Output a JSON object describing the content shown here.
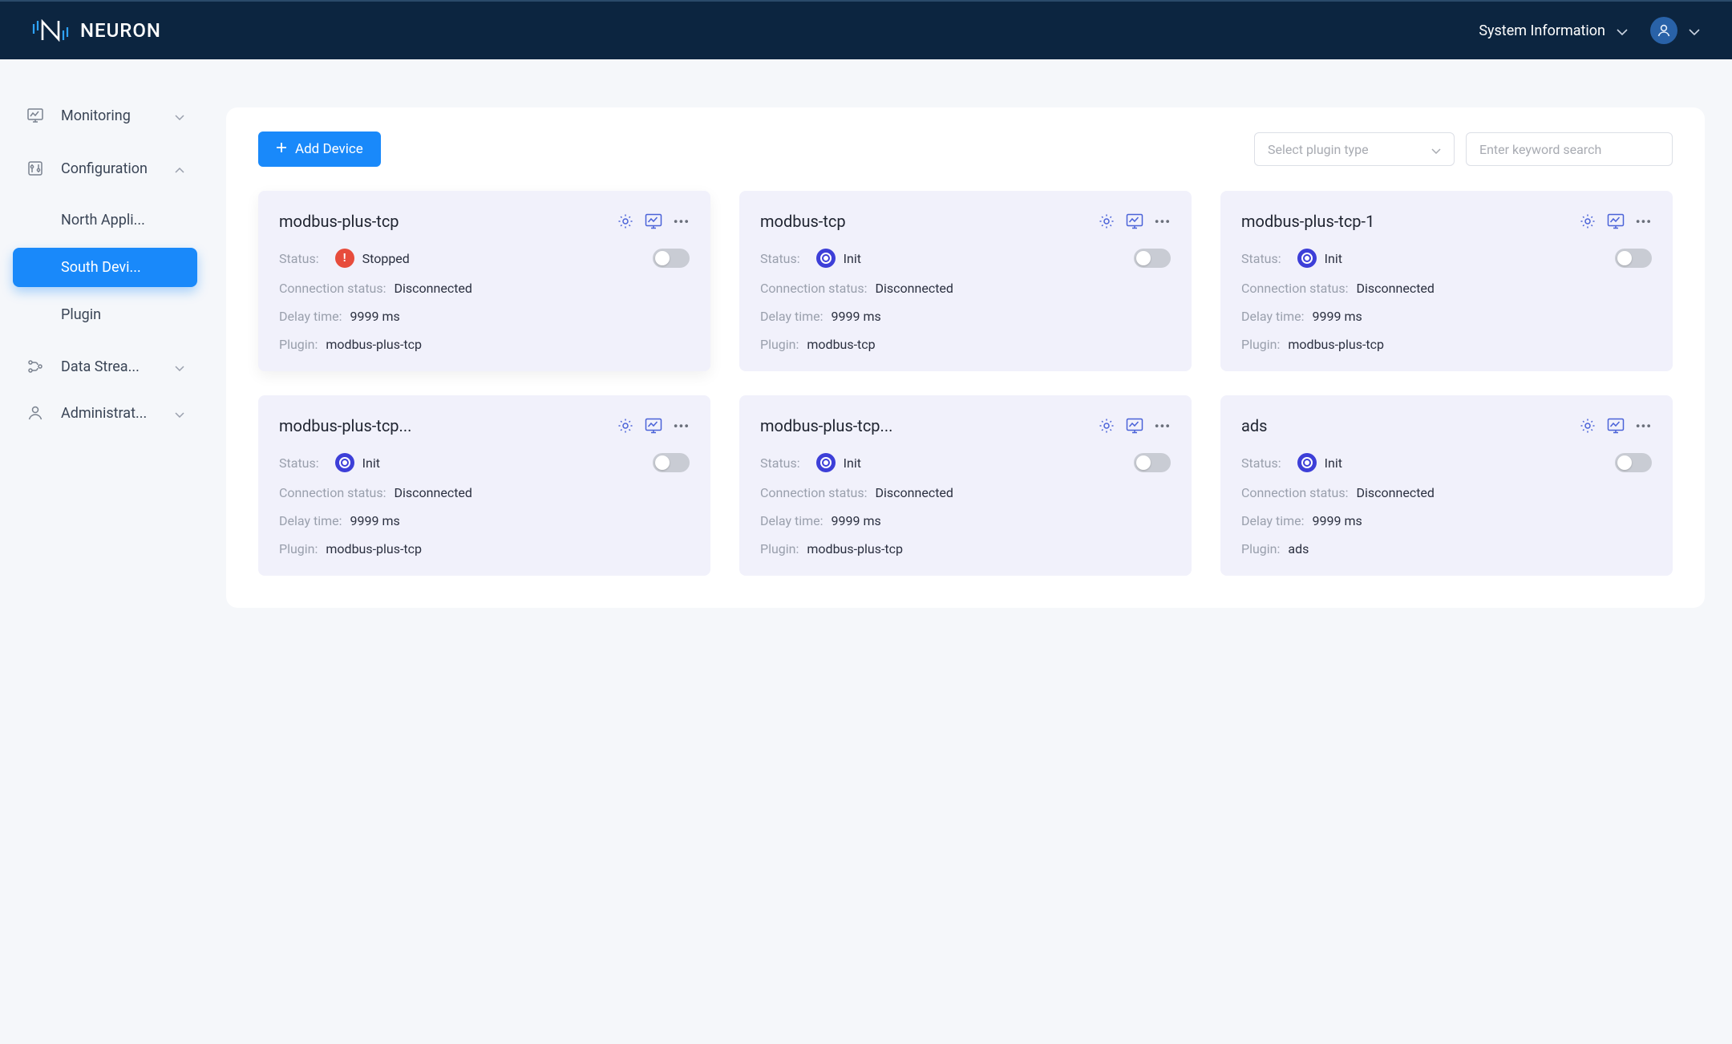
{
  "colors": {
    "header_bg": "#0c2540",
    "accent": "#1989fa",
    "card_bg": "#f1f1fb",
    "page_bg": "#f5f7fa",
    "label_muted": "#9aa0ad",
    "text_dark": "#2b3040",
    "border": "#dcdfe6",
    "init_dot": "#3d3fd8",
    "stopped_dot": "#e74c3c",
    "switch_off": "#c9ccd4"
  },
  "header": {
    "brand": "NEURON",
    "system_info": "System Information"
  },
  "sidebar": {
    "monitoring": "Monitoring",
    "configuration": "Configuration",
    "north": "North Appli...",
    "south": "South Devi...",
    "plugin": "Plugin",
    "data": "Data Strea...",
    "admin": "Administrat..."
  },
  "toolbar": {
    "add_device": "Add Device",
    "plugin_placeholder": "Select plugin type",
    "search_placeholder": "Enter keyword search"
  },
  "labels": {
    "status": "Status:",
    "connection": "Connection status:",
    "delay": "Delay time:",
    "plugin": "Plugin:"
  },
  "cards": [
    {
      "title": "modbus-plus-tcp",
      "status_text": "Stopped",
      "status_kind": "stopped",
      "connection": "Disconnected",
      "delay": "9999 ms",
      "plugin": "modbus-plus-tcp",
      "toggle_on": false,
      "elevated": true
    },
    {
      "title": "modbus-tcp",
      "status_text": "Init",
      "status_kind": "init",
      "connection": "Disconnected",
      "delay": "9999 ms",
      "plugin": "modbus-tcp",
      "toggle_on": false,
      "elevated": false
    },
    {
      "title": "modbus-plus-tcp-1",
      "status_text": "Init",
      "status_kind": "init",
      "connection": "Disconnected",
      "delay": "9999 ms",
      "plugin": "modbus-plus-tcp",
      "toggle_on": false,
      "elevated": false
    },
    {
      "title": "modbus-plus-tcp...",
      "status_text": "Init",
      "status_kind": "init",
      "connection": "Disconnected",
      "delay": "9999 ms",
      "plugin": "modbus-plus-tcp",
      "toggle_on": false,
      "elevated": false
    },
    {
      "title": "modbus-plus-tcp...",
      "status_text": "Init",
      "status_kind": "init",
      "connection": "Disconnected",
      "delay": "9999 ms",
      "plugin": "modbus-plus-tcp",
      "toggle_on": false,
      "elevated": false
    },
    {
      "title": "ads",
      "status_text": "Init",
      "status_kind": "init",
      "connection": "Disconnected",
      "delay": "9999 ms",
      "plugin": "ads",
      "toggle_on": false,
      "elevated": false
    }
  ]
}
